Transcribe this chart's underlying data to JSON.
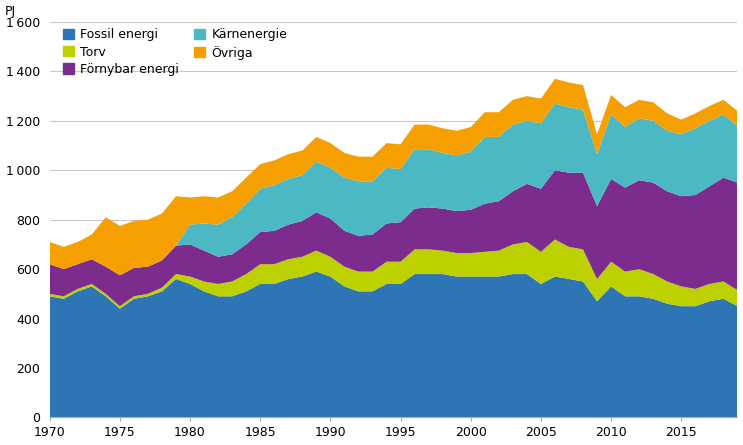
{
  "years": [
    1970,
    1971,
    1972,
    1973,
    1974,
    1975,
    1976,
    1977,
    1978,
    1979,
    1980,
    1981,
    1982,
    1983,
    1984,
    1985,
    1986,
    1987,
    1988,
    1989,
    1990,
    1991,
    1992,
    1993,
    1994,
    1995,
    1996,
    1997,
    1998,
    1999,
    2000,
    2001,
    2002,
    2003,
    2004,
    2005,
    2006,
    2007,
    2008,
    2009,
    2010,
    2011,
    2012,
    2013,
    2014,
    2015,
    2016,
    2017,
    2018,
    2019
  ],
  "fossil": [
    490,
    480,
    510,
    530,
    490,
    440,
    480,
    490,
    510,
    560,
    540,
    510,
    490,
    490,
    510,
    540,
    540,
    560,
    570,
    590,
    570,
    530,
    510,
    510,
    540,
    540,
    580,
    580,
    580,
    570,
    570,
    570,
    570,
    580,
    580,
    540,
    570,
    560,
    550,
    470,
    530,
    490,
    490,
    480,
    460,
    450,
    450,
    470,
    480,
    450
  ],
  "torv": [
    10,
    10,
    10,
    10,
    10,
    10,
    10,
    10,
    15,
    20,
    30,
    40,
    50,
    60,
    70,
    80,
    80,
    80,
    80,
    85,
    80,
    80,
    80,
    80,
    90,
    90,
    100,
    100,
    95,
    95,
    95,
    100,
    105,
    120,
    130,
    130,
    150,
    130,
    130,
    90,
    100,
    100,
    110,
    100,
    90,
    80,
    70,
    70,
    70,
    65
  ],
  "fornybar": [
    120,
    110,
    100,
    100,
    110,
    125,
    115,
    110,
    110,
    115,
    130,
    125,
    110,
    110,
    120,
    130,
    135,
    140,
    145,
    155,
    155,
    145,
    145,
    150,
    155,
    160,
    165,
    170,
    170,
    170,
    175,
    195,
    200,
    215,
    235,
    255,
    280,
    300,
    310,
    295,
    335,
    340,
    360,
    370,
    365,
    365,
    380,
    395,
    420,
    435
  ],
  "karnenergie": [
    0,
    0,
    0,
    0,
    0,
    0,
    0,
    0,
    0,
    0,
    80,
    110,
    130,
    150,
    165,
    175,
    185,
    185,
    185,
    205,
    205,
    215,
    220,
    215,
    225,
    215,
    240,
    235,
    225,
    225,
    235,
    270,
    260,
    270,
    255,
    265,
    270,
    265,
    255,
    210,
    260,
    245,
    250,
    250,
    245,
    250,
    270,
    265,
    255,
    230
  ],
  "ovriga": [
    90,
    90,
    90,
    100,
    200,
    200,
    190,
    190,
    190,
    200,
    110,
    110,
    110,
    105,
    105,
    100,
    100,
    100,
    100,
    100,
    100,
    100,
    100,
    100,
    100,
    100,
    100,
    100,
    100,
    100,
    100,
    100,
    100,
    100,
    100,
    100,
    100,
    100,
    100,
    80,
    80,
    80,
    75,
    75,
    70,
    60,
    60,
    60,
    60,
    60
  ],
  "colors": {
    "fossil": "#2e75b6",
    "torv": "#bdd000",
    "fornybar": "#7b2c8c",
    "karnenergie": "#4bb8c4",
    "ovriga": "#f5a000"
  },
  "ylabel": "PJ",
  "ylim": [
    0,
    1600
  ],
  "yticks": [
    0,
    200,
    400,
    600,
    800,
    1000,
    1200,
    1400,
    1600
  ],
  "xticks": [
    1970,
    1975,
    1980,
    1985,
    1990,
    1995,
    2000,
    2005,
    2010,
    2015
  ],
  "background_color": "#ffffff",
  "grid_color": "#c8c8c8"
}
